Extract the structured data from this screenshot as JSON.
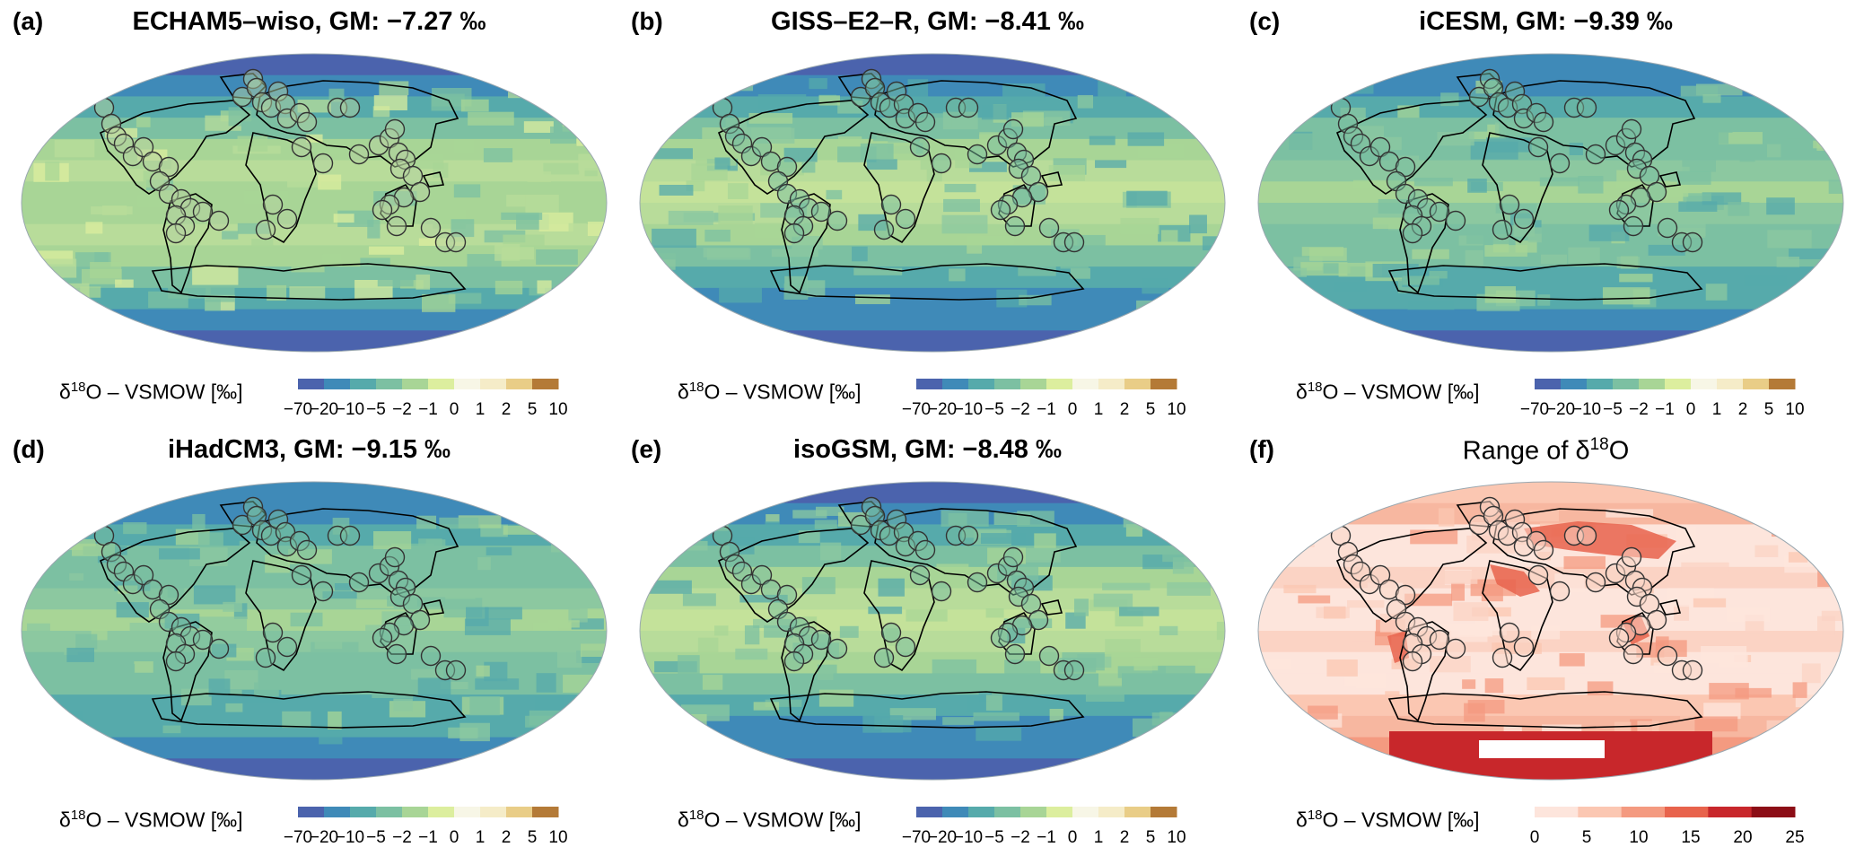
{
  "colors": {
    "ocean_outline": "#9aa8b0",
    "land_outline": "#000000",
    "station_stroke": "#333333"
  },
  "colorbar_diverging": {
    "label_pre": "δ",
    "label_sup": "18",
    "label_post": "O – VSMOW [‰]",
    "ticks": [
      "−70",
      "−20",
      "−10",
      "−5",
      "−2",
      "−1",
      "0",
      "1",
      "2",
      "5",
      "10"
    ],
    "colors": [
      "#4b63ad",
      "#3f8ab8",
      "#56aaab",
      "#7cc0a2",
      "#a8d596",
      "#dcee9e",
      "#f7f6e6",
      "#f5ecc8",
      "#e9cd87",
      "#b47a37"
    ]
  },
  "colorbar_range": {
    "label_pre": "δ",
    "label_sup": "18",
    "label_post": "O – VSMOW [‰]",
    "ticks": [
      "0",
      "5",
      "10",
      "15",
      "20",
      "25"
    ],
    "colors": [
      "#fde5dc",
      "#fbc7b2",
      "#f49a80",
      "#e8634c",
      "#c8272b",
      "#8c0d16"
    ]
  },
  "panels": [
    {
      "label": "(a)",
      "title": "ECHAM5–wiso, GM: −7.27 ‰",
      "scheme": "wet",
      "cb": "div"
    },
    {
      "label": "(b)",
      "title": "GISS–E2–R, GM: −8.41 ‰",
      "scheme": "mid",
      "cb": "div"
    },
    {
      "label": "(c)",
      "title": "iCESM, GM: −9.39 ‰",
      "scheme": "dry",
      "cb": "div"
    },
    {
      "label": "(d)",
      "title": "iHadCM3, GM: −9.15 ‰",
      "scheme": "dry",
      "cb": "div"
    },
    {
      "label": "(e)",
      "title": "isoGSM, GM: −8.48 ‰",
      "scheme": "mid",
      "cb": "div"
    },
    {
      "label": "(f)",
      "title_pre": "Range of δ",
      "title_sup": "18",
      "title_post": "O",
      "scheme": "range",
      "cb": "range"
    }
  ]
}
